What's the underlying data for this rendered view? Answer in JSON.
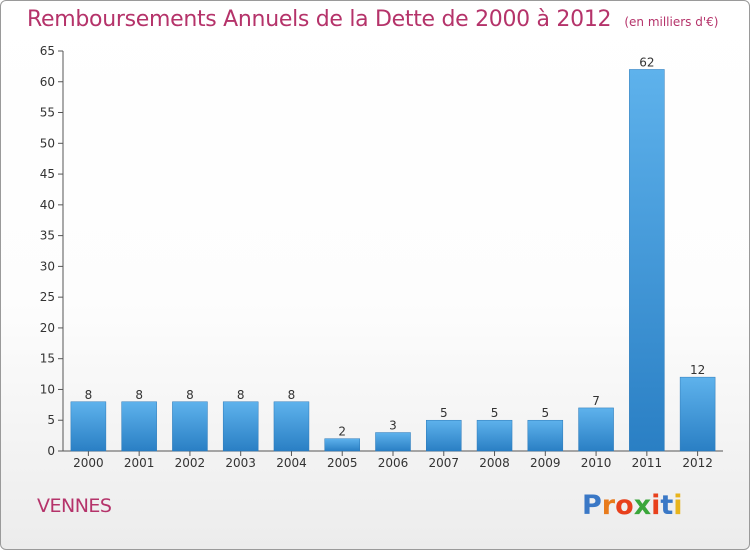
{
  "chart_data": {
    "type": "bar",
    "title": "Remboursements Annuels de la Dette de 2000 à 2012",
    "unit": "(en milliers d'€)",
    "categories": [
      "2000",
      "2001",
      "2002",
      "2003",
      "2004",
      "2005",
      "2006",
      "2007",
      "2008",
      "2009",
      "2010",
      "2011",
      "2012"
    ],
    "values": [
      8,
      8,
      8,
      8,
      8,
      2,
      3,
      5,
      5,
      5,
      7,
      62,
      12
    ],
    "ylim": [
      0,
      65
    ],
    "yticks": [
      0,
      5,
      10,
      15,
      20,
      25,
      30,
      35,
      40,
      45,
      50,
      55,
      60,
      65
    ],
    "grid": false,
    "bar_color": "#3d96d8"
  },
  "commune": "VENNES",
  "logo": {
    "text": "Proxiti",
    "letter_colors": [
      "#3a78c6",
      "#e87b1c",
      "#e8401c",
      "#3aa63a",
      "#e8401c",
      "#3a78c6",
      "#e8b41c"
    ]
  }
}
